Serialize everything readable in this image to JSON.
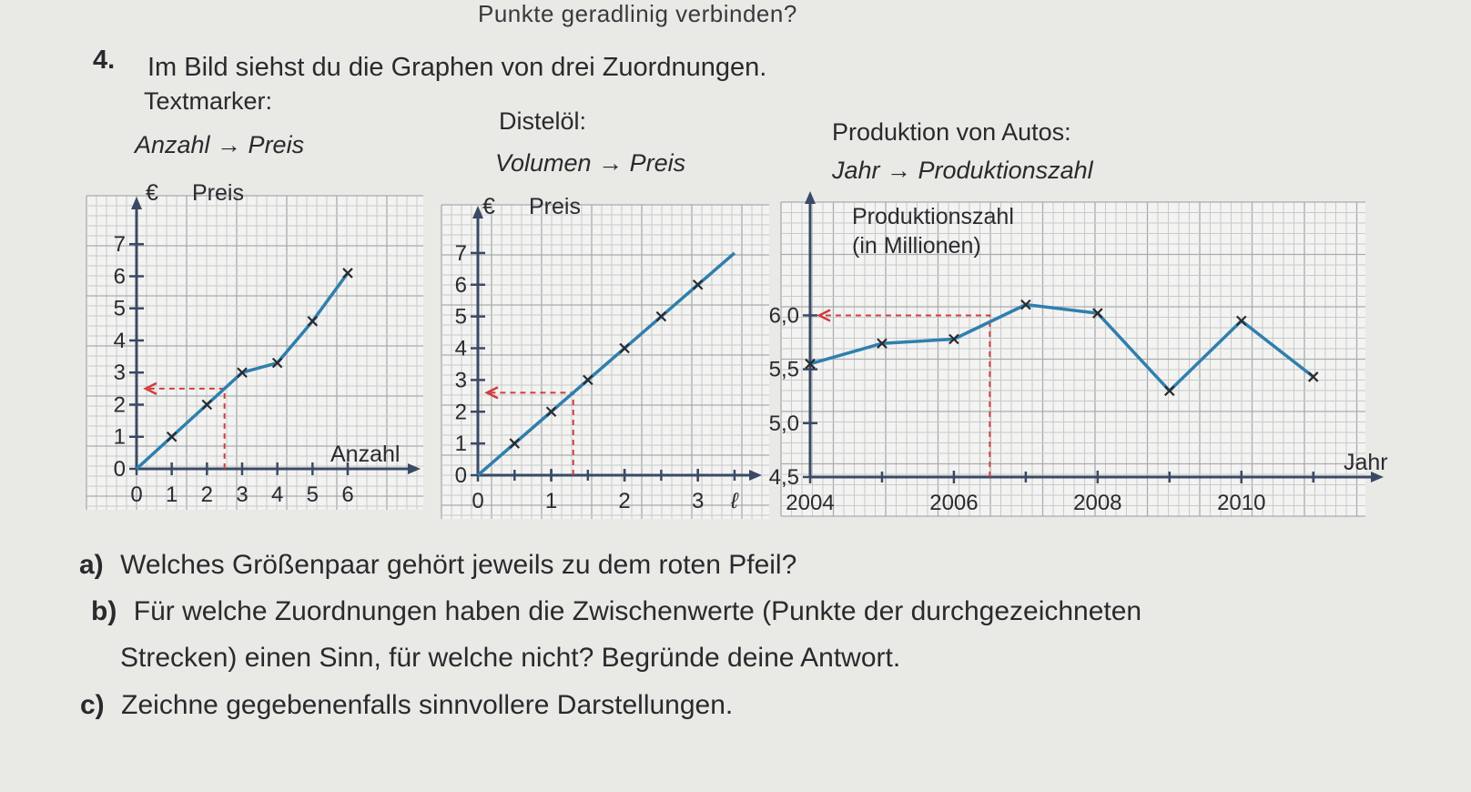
{
  "top_fragment": "Punkte geradlinig verbinden?",
  "task": {
    "number": "4.",
    "intro": "Im Bild siehst du die Graphen von drei Zuordnungen."
  },
  "graphs": [
    {
      "title": "Textmarker:",
      "mapping": "Anzahl → Preis",
      "y_unit": "€",
      "y_label": "Preis",
      "x_label": "Anzahl"
    },
    {
      "title": "Distelöl:",
      "mapping": "Volumen → Preis",
      "y_unit": "€",
      "y_label": "Preis",
      "x_unit": "ℓ"
    },
    {
      "title": "Produktion von Autos:",
      "mapping": "Jahr → Produktionszahl",
      "y_label": "Produktionszahl",
      "y_label_2": "(in Millionen)",
      "x_label": "Jahr"
    }
  ],
  "chart_data": [
    {
      "type": "line",
      "x": [
        0,
        1,
        2,
        3,
        4,
        5,
        6
      ],
      "values": [
        0,
        1,
        2,
        3,
        3.3,
        4.6,
        6.1
      ],
      "xlim": [
        0,
        7.5
      ],
      "ylim": [
        0,
        7.8
      ],
      "x_ticks": [
        "0",
        "1",
        "2",
        "3",
        "4",
        "5",
        "6"
      ],
      "y_ticks": [
        "0",
        "1",
        "2",
        "3",
        "4",
        "5",
        "6",
        "7"
      ],
      "arrow": {
        "x": 2.5,
        "y": 2.5
      },
      "colors": {
        "line": "#2f7fae",
        "arrow": "#d23c3c"
      }
    },
    {
      "type": "line",
      "x": [
        0,
        0.5,
        1,
        1.5,
        2,
        2.5,
        3
      ],
      "values": [
        0,
        1,
        2,
        3,
        4,
        5,
        6
      ],
      "line_to": [
        3.5,
        7
      ],
      "xlim": [
        0,
        3.6
      ],
      "ylim": [
        0,
        7.8
      ],
      "x_ticks": [
        "0",
        "1",
        "2",
        "3"
      ],
      "x_tick_values": [
        0,
        1,
        2,
        3
      ],
      "y_ticks": [
        "0",
        "1",
        "2",
        "3",
        "4",
        "5",
        "6",
        "7"
      ],
      "arrow": {
        "x": 1.3,
        "y": 2.6
      },
      "colors": {
        "line": "#2f7fae",
        "arrow": "#d23c3c"
      }
    },
    {
      "type": "line",
      "x": [
        2004,
        2005,
        2006,
        2007,
        2008,
        2009,
        2010,
        2011
      ],
      "values": [
        5.55,
        5.74,
        5.78,
        6.1,
        6.02,
        5.3,
        5.95,
        5.43
      ],
      "xlim": [
        2004,
        2011.7
      ],
      "ylim": [
        4.5,
        6.95
      ],
      "x_ticks": [
        "2004",
        "2006",
        "2008",
        "2010"
      ],
      "x_tick_values": [
        2004,
        2006,
        2008,
        2010
      ],
      "y_ticks": [
        "4,5",
        "5,0",
        "5,5",
        "6,0"
      ],
      "y_tick_values": [
        4.5,
        5.0,
        5.5,
        6.0
      ],
      "arrow": {
        "x": 2006.5,
        "y": 6.0
      },
      "colors": {
        "line": "#2f7fae",
        "arrow": "#d23c3c"
      }
    }
  ],
  "questions": [
    {
      "letter": "a)",
      "text": "Welches Größenpaar gehört jeweils zu dem roten Pfeil?"
    },
    {
      "letter": "b)",
      "text": "Für welche Zuordnungen haben die Zwischenwerte (Punkte der durchgezeichneten",
      "text2": "Strecken) einen Sinn, für welche nicht? Begründe deine Antwort."
    },
    {
      "letter": "c)",
      "text": "Zeichne gegebenenfalls sinnvollere Darstellungen."
    }
  ]
}
